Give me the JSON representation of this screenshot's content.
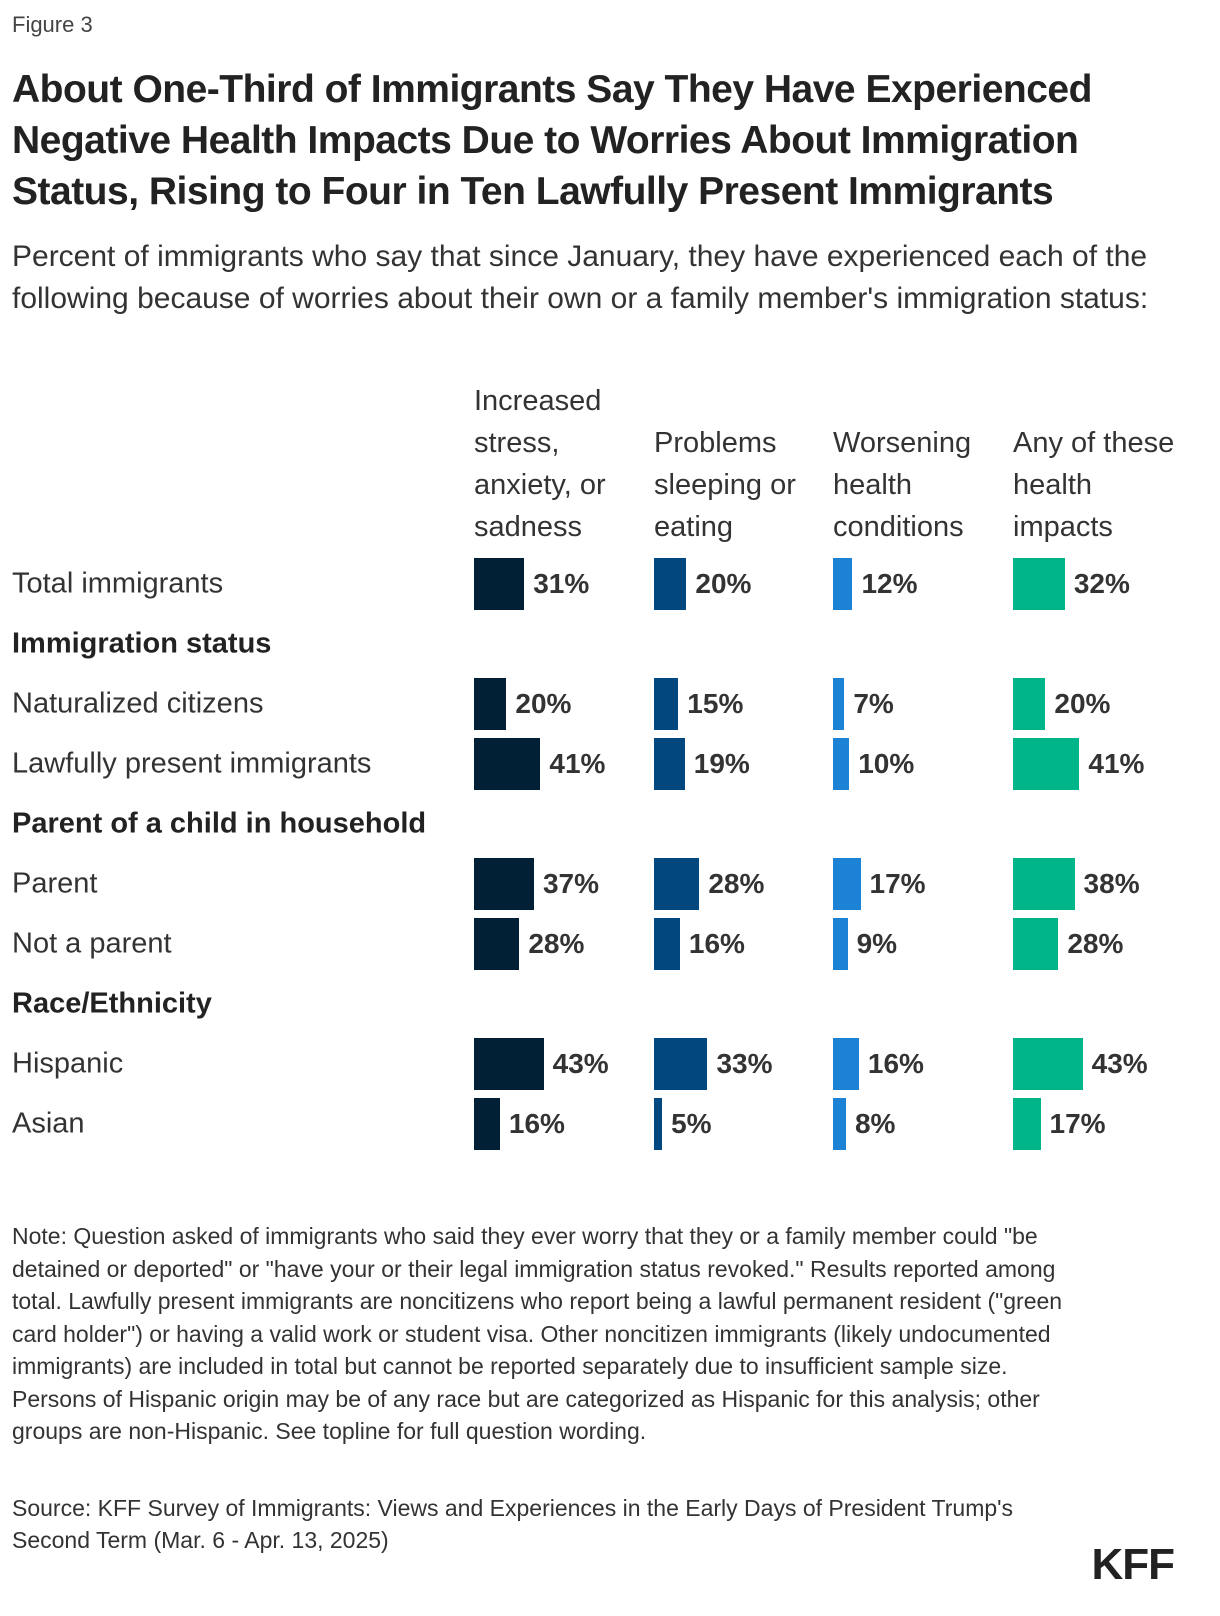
{
  "figure_label": "Figure 3",
  "title": "About One-Third of Immigrants Say They Have Experienced Negative Health Impacts Due to Worries About Immigration Status, Rising to Four in Ten Lawfully Present Immigrants",
  "subtitle": "Percent of immigrants who say that since January, they have experienced each of the following because of worries about their own or a family member's immigration status:",
  "chart_data": {
    "type": "bar",
    "title": "About One-Third of Immigrants Say They Have Experienced Negative Health Impacts Due to Worries About Immigration Status, Rising to Four in Ten Lawfully Present Immigrants",
    "series": [
      {
        "name": "Increased stress, anxiety, or sadness",
        "color": "#011f35"
      },
      {
        "name": "Problems sleeping or eating",
        "color": "#02487f"
      },
      {
        "name": "Worsening health conditions",
        "color": "#1b82d6"
      },
      {
        "name": "Any of these health impacts",
        "color": "#00b58a"
      }
    ],
    "rows": [
      {
        "type": "row",
        "label": "Total immigrants",
        "values": [
          31,
          20,
          12,
          32
        ]
      },
      {
        "type": "group",
        "label": "Immigration status"
      },
      {
        "type": "row",
        "label": "Naturalized citizens",
        "values": [
          20,
          15,
          7,
          20
        ]
      },
      {
        "type": "row",
        "label": "Lawfully present immigrants",
        "values": [
          41,
          19,
          10,
          41
        ]
      },
      {
        "type": "group",
        "label": "Parent of a child in household"
      },
      {
        "type": "row",
        "label": "Parent",
        "values": [
          37,
          28,
          17,
          38
        ]
      },
      {
        "type": "row",
        "label": "Not a parent",
        "values": [
          28,
          16,
          9,
          28
        ]
      },
      {
        "type": "group",
        "label": "Race/Ethnicity"
      },
      {
        "type": "row",
        "label": "Hispanic",
        "values": [
          43,
          33,
          16,
          43
        ]
      },
      {
        "type": "row",
        "label": "Asian",
        "values": [
          16,
          5,
          8,
          17
        ]
      }
    ],
    "unit": "%",
    "xlim": [
      0,
      100
    ]
  },
  "note": "Note: Question asked of immigrants who said they ever worry that they or a family member could \"be detained or deported\" or \"have your or their legal immigration status revoked.\" Results reported among total. Lawfully present immigrants are noncitizens who report being a lawful permanent resident (\"green card holder\") or having a valid work or student visa. Other noncitizen immigrants (likely undocumented immigrants) are included in total but cannot be reported separately due to insufficient sample size. Persons of Hispanic origin may be of any race but are categorized as Hispanic for this analysis; other groups are non-Hispanic. See topline for full question wording.",
  "source": "Source: KFF Survey of Immigrants: Views and Experiences in the Early Days of President Trump's Second Term (Mar. 6 - Apr. 13, 2025)",
  "logo": "KFF"
}
